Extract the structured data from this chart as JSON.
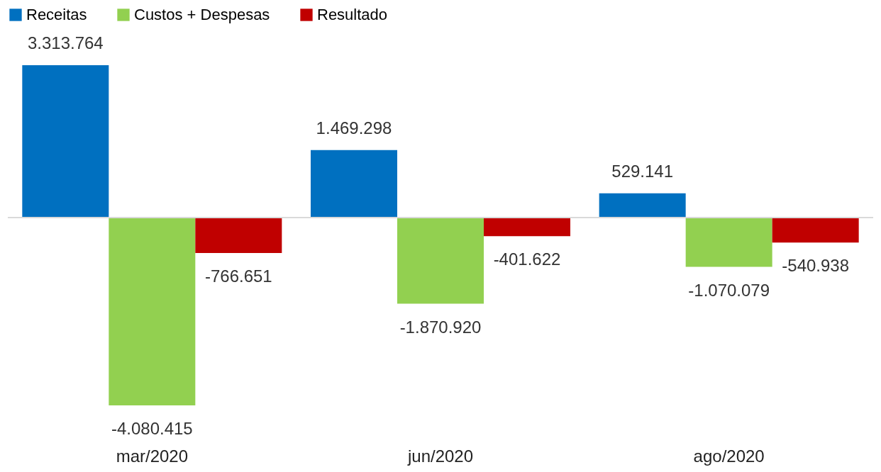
{
  "chart_data": {
    "type": "bar",
    "tick_labels": "x",
    "categories": [
      "mar/2020",
      "jun/2020",
      "ago/2020"
    ],
    "series": [
      {
        "name": "Receitas",
        "color": "#0070c0",
        "values": [
          3313764,
          1469298,
          529141
        ],
        "value_labels": [
          "3.313.764",
          "1.469.298",
          "529.141"
        ]
      },
      {
        "name": "Custos + Despesas",
        "color": "#92d050",
        "values": [
          -4080415,
          -1870920,
          -1070079
        ],
        "value_labels": [
          "-4.080.415",
          "-1.870.920",
          "-1.070.079"
        ]
      },
      {
        "name": "Resultado",
        "color": "#c00000",
        "values": [
          -766651,
          -401622,
          -540938
        ],
        "value_labels": [
          "-766.651",
          "-401.622",
          "-540.938"
        ]
      }
    ],
    "legend": "top",
    "grid": false
  }
}
